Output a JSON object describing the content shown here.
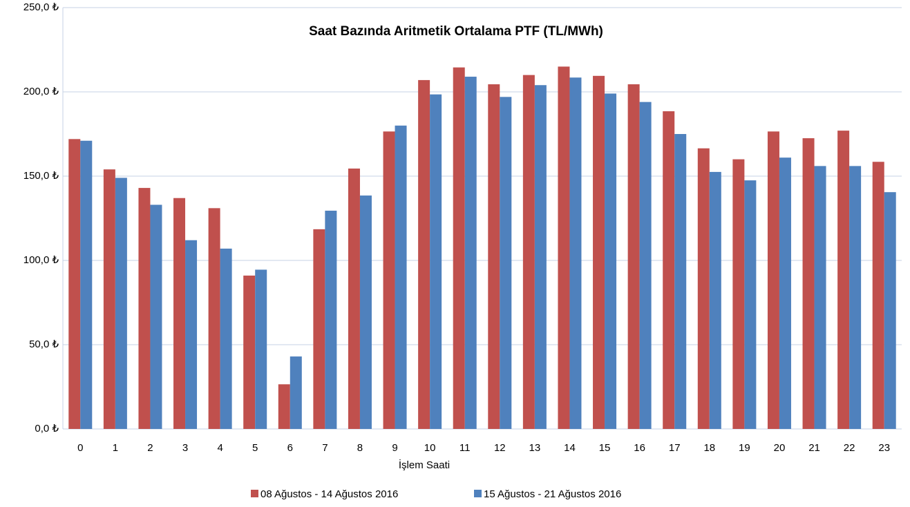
{
  "chart_data": {
    "type": "bar",
    "title": "Saat Bazında Aritmetik Ortalama PTF (TL/MWh)",
    "x_label": "İşlem Saati",
    "categories": [
      "0",
      "1",
      "2",
      "3",
      "4",
      "5",
      "6",
      "7",
      "8",
      "9",
      "10",
      "11",
      "12",
      "13",
      "14",
      "15",
      "16",
      "17",
      "18",
      "19",
      "20",
      "21",
      "22",
      "23"
    ],
    "series": [
      {
        "name": "08 Ağustos - 14 Ağustos 2016",
        "color": "#c0504d",
        "values": [
          172,
          154,
          143,
          137,
          131,
          91,
          26.5,
          118.5,
          154.5,
          176.5,
          207,
          214.5,
          204.5,
          210,
          215,
          209.5,
          204.5,
          188.5,
          166.5,
          160,
          176.5,
          172.5,
          177,
          158.5
        ]
      },
      {
        "name": "15 Ağustos - 21 Ağustos 2016",
        "color": "#4f81bd",
        "values": [
          171,
          149,
          133,
          112,
          107,
          94.5,
          43,
          129.5,
          138.5,
          180,
          198.5,
          209,
          197,
          204,
          208.5,
          199,
          194,
          175,
          152.5,
          147.5,
          161,
          156,
          156,
          140.5
        ]
      }
    ],
    "ylim": [
      0,
      250
    ],
    "yticks": [
      {
        "value": 0,
        "label": "0,0 ₺"
      },
      {
        "value": 50,
        "label": "50,0 ₺"
      },
      {
        "value": 100,
        "label": "100,0 ₺"
      },
      {
        "value": 150,
        "label": "150,0 ₺"
      },
      {
        "value": 200,
        "label": "200,0 ₺"
      },
      {
        "value": 250,
        "label": "250,0 ₺"
      }
    ],
    "grid": true,
    "legend": "bottom"
  }
}
